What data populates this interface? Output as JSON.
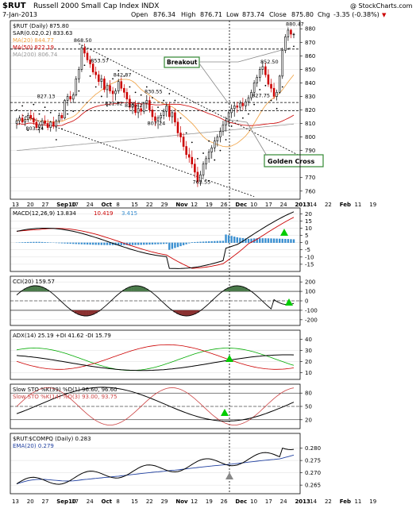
{
  "header": {
    "symbol": "$RUT",
    "name": "Russell 2000 Small Cap Index  INDX",
    "date": "7-Jan-2013",
    "open_label": "Open",
    "open": "876.34",
    "high_label": "High",
    "high": "876.71",
    "low_label": "Low",
    "low": "873.74",
    "close_label": "Close",
    "close": "875.80",
    "chg_label": "Chg",
    "chg": "-3.35 (-0.38%)",
    "chg_arrow": "▼",
    "watermark": "@ StockCharts.com"
  },
  "colors": {
    "up": "#000000",
    "down": "#cc0000",
    "ma20": "#f0a040",
    "ma50": "#cc0000",
    "ma200": "#999999",
    "macd_hist": "#3a8fd0",
    "cci_fill_pos": "#4a7a4a",
    "cci_fill_neg": "#8a3030",
    "green_arrow": "#00cc00",
    "annotation_box": "#338833",
    "ema20": "#2040a0"
  },
  "x_axis": {
    "labels": [
      "13",
      "20",
      "27",
      "Sep10",
      "17",
      "24",
      "Oct",
      "8",
      "15",
      "22",
      "29",
      "Nov",
      "12",
      "19",
      "26",
      "Dec",
      "10",
      "17",
      "24",
      "2013",
      "14",
      "22",
      "Feb",
      "11",
      "19"
    ]
  },
  "chart_data": [
    {
      "type": "candlestick",
      "panel": "price",
      "legend": [
        {
          "label": "$RUT (Daily) 875.80",
          "color": "#000000"
        },
        {
          "label": "SAR(0.02,0.2) 833.63",
          "color": "#000000"
        },
        {
          "label": "MA(20) 844.77",
          "color": "#f0a040"
        },
        {
          "label": "MA(50) 822.19",
          "color": "#cc0000"
        },
        {
          "label": "MA(200) 806.74",
          "color": "#999999"
        }
      ],
      "y_ticks": [
        880,
        870,
        860,
        850,
        840,
        830,
        820,
        810,
        800,
        790,
        780,
        770,
        760
      ],
      "ylim": [
        754,
        886
      ],
      "x_dates": [
        "Aug13",
        "Aug14",
        "Aug15",
        "Aug16",
        "Aug17",
        "Aug20",
        "Aug21",
        "Aug22",
        "Aug23",
        "Aug24",
        "Aug27",
        "Aug28",
        "Aug29",
        "Aug30",
        "Aug31",
        "Sep4",
        "Sep5",
        "Sep6",
        "Sep7",
        "Sep10",
        "Sep11",
        "Sep12",
        "Sep13",
        "Sep14",
        "Sep17",
        "Sep18",
        "Sep19",
        "Sep20",
        "Sep21",
        "Sep24",
        "Sep25",
        "Sep26",
        "Sep27",
        "Sep28",
        "Oct1",
        "Oct2",
        "Oct3",
        "Oct4",
        "Oct5",
        "Oct8",
        "Oct9",
        "Oct10",
        "Oct11",
        "Oct12",
        "Oct15",
        "Oct16",
        "Oct17",
        "Oct18",
        "Oct19",
        "Oct22",
        "Oct23",
        "Oct24",
        "Oct25",
        "Oct26",
        "Oct31",
        "Nov1",
        "Nov2",
        "Nov5",
        "Nov6",
        "Nov7",
        "Nov8",
        "Nov9",
        "Nov12",
        "Nov13",
        "Nov14",
        "Nov15",
        "Nov16",
        "Nov19",
        "Nov20",
        "Nov21",
        "Nov23",
        "Nov26",
        "Nov27",
        "Nov28",
        "Nov29",
        "Nov30",
        "Dec3",
        "Dec4",
        "Dec5",
        "Dec6",
        "Dec7",
        "Dec10",
        "Dec11",
        "Dec12",
        "Dec13",
        "Dec14",
        "Dec17",
        "Dec18",
        "Dec19",
        "Dec20",
        "Dec21",
        "Dec24",
        "Dec26",
        "Dec27",
        "Dec28",
        "Dec31",
        "Jan2",
        "Jan3",
        "Jan4",
        "Jan7"
      ],
      "ohlc": [
        [
          810,
          814,
          806,
          812
        ],
        [
          812,
          816,
          809,
          814
        ],
        [
          814,
          817,
          810,
          811
        ],
        [
          811,
          815,
          808,
          813
        ],
        [
          813,
          818,
          811,
          816
        ],
        [
          816,
          820,
          812,
          814
        ],
        [
          814,
          818,
          809,
          811
        ],
        [
          811,
          814,
          805,
          807
        ],
        [
          807,
          811,
          803,
          809
        ],
        [
          809,
          814,
          806,
          812
        ],
        [
          812,
          816,
          809,
          810
        ],
        [
          810,
          813,
          805,
          807
        ],
        [
          807,
          812,
          804,
          811
        ],
        [
          811,
          815,
          806,
          808
        ],
        [
          808,
          813,
          804,
          812
        ],
        [
          812,
          818,
          810,
          816
        ],
        [
          816,
          818,
          812,
          814
        ],
        [
          814,
          828,
          813,
          827
        ],
        [
          827,
          832,
          823,
          830
        ],
        [
          830,
          834,
          826,
          828
        ],
        [
          828,
          833,
          825,
          831
        ],
        [
          831,
          845,
          830,
          843
        ],
        [
          843,
          852,
          840,
          850
        ],
        [
          850,
          868,
          848,
          866
        ],
        [
          866,
          869,
          859,
          862
        ],
        [
          862,
          864,
          855,
          857
        ],
        [
          857,
          860,
          851,
          854
        ],
        [
          854,
          856,
          846,
          848
        ],
        [
          848,
          852,
          843,
          846
        ],
        [
          846,
          849,
          838,
          841
        ],
        [
          841,
          846,
          836,
          843
        ],
        [
          843,
          845,
          833,
          835
        ],
        [
          835,
          840,
          829,
          838
        ],
        [
          838,
          842,
          832,
          834
        ],
        [
          834,
          837,
          826,
          832
        ],
        [
          832,
          836,
          827,
          834
        ],
        [
          834,
          843,
          832,
          841
        ],
        [
          841,
          844,
          834,
          836
        ],
        [
          836,
          839,
          829,
          833
        ],
        [
          833,
          836,
          826,
          828
        ],
        [
          828,
          831,
          820,
          822
        ],
        [
          822,
          826,
          817,
          824
        ],
        [
          824,
          827,
          816,
          818
        ],
        [
          818,
          823,
          814,
          821
        ],
        [
          821,
          825,
          816,
          819
        ],
        [
          819,
          826,
          817,
          825
        ],
        [
          825,
          831,
          821,
          827
        ],
        [
          827,
          830,
          818,
          820
        ],
        [
          820,
          823,
          812,
          815
        ],
        [
          815,
          818,
          808,
          812
        ],
        [
          812,
          816,
          806,
          814
        ],
        [
          814,
          818,
          810,
          816
        ],
        [
          816,
          821,
          813,
          819
        ],
        [
          819,
          825,
          815,
          823
        ],
        [
          823,
          826,
          812,
          815
        ],
        [
          815,
          820,
          810,
          818
        ],
        [
          818,
          821,
          808,
          811
        ],
        [
          811,
          814,
          800,
          803
        ],
        [
          803,
          808,
          796,
          800
        ],
        [
          800,
          803,
          790,
          793
        ],
        [
          793,
          797,
          784,
          787
        ],
        [
          787,
          792,
          781,
          785
        ],
        [
          785,
          790,
          777,
          780
        ],
        [
          780,
          784,
          770,
          774
        ],
        [
          774,
          778,
          763,
          767
        ],
        [
          767,
          775,
          764,
          772
        ],
        [
          772,
          782,
          770,
          780
        ],
        [
          780,
          786,
          776,
          784
        ],
        [
          784,
          791,
          781,
          789
        ],
        [
          789,
          794,
          784,
          792
        ],
        [
          792,
          800,
          789,
          797
        ],
        [
          797,
          802,
          793,
          800
        ],
        [
          800,
          807,
          796,
          804
        ],
        [
          804,
          812,
          801,
          809
        ],
        [
          809,
          815,
          804,
          812
        ],
        [
          812,
          820,
          808,
          818
        ],
        [
          818,
          824,
          814,
          821
        ],
        [
          821,
          826,
          815,
          823
        ],
        [
          823,
          826,
          818,
          822
        ],
        [
          822,
          827,
          819,
          825
        ],
        [
          825,
          829,
          820,
          823
        ],
        [
          823,
          828,
          820,
          826
        ],
        [
          826,
          831,
          823,
          829
        ],
        [
          829,
          835,
          827,
          833
        ],
        [
          833,
          842,
          830,
          840
        ],
        [
          840,
          846,
          837,
          844
        ],
        [
          844,
          852,
          841,
          850
        ],
        [
          850,
          856,
          846,
          852
        ],
        [
          852,
          855,
          844,
          846
        ],
        [
          846,
          850,
          837,
          839
        ],
        [
          839,
          843,
          833,
          836
        ],
        [
          836,
          840,
          828,
          830
        ],
        [
          830,
          835,
          827,
          833
        ],
        [
          833,
          846,
          832,
          845
        ],
        [
          845,
          866,
          843,
          864
        ],
        [
          864,
          876,
          862,
          874
        ],
        [
          874,
          881,
          871,
          879
        ],
        [
          879,
          880,
          873,
          876
        ],
        [
          876,
          877,
          873,
          876
        ]
      ],
      "annotations": [
        {
          "text": "868.50",
          "x": "Sep14",
          "y": 868.5
        },
        {
          "text": "853.57",
          "x": "Sep24",
          "y": 853.57
        },
        {
          "text": "842.87",
          "x": "Oct4",
          "y": 842.87
        },
        {
          "text": "830.55",
          "x": "Oct19",
          "y": 830.55
        },
        {
          "text": "827.13",
          "x": "Aug27",
          "y": 827.13
        },
        {
          "text": "821.82",
          "x": "Oct1",
          "y": 821.82
        },
        {
          "text": "820.42",
          "x": "Oct10",
          "y": 820.42
        },
        {
          "text": "807.24",
          "x": "Oct22",
          "y": 807.24
        },
        {
          "text": "803.24",
          "x": "Aug21",
          "y": 803.24
        },
        {
          "text": "763.55",
          "x": "Nov15",
          "y": 763.55
        },
        {
          "text": "852.50",
          "x": "Dec20",
          "y": 852.5
        },
        {
          "text": "827.75",
          "x": "Dec17",
          "y": 827.75
        },
        {
          "text": "880.47",
          "x": "Jan4",
          "y": 880.47
        },
        {
          "text": "Breakout",
          "box": true
        },
        {
          "text": "Golden Cross",
          "box": true
        }
      ],
      "hlines": [
        865,
        825.5,
        819.5
      ]
    },
    {
      "type": "line",
      "panel": "macd",
      "legend": [
        {
          "label": "MACD(12,26,9) 13.834",
          "color": "#000000"
        },
        {
          "label": "10.419",
          "color": "#cc0000"
        },
        {
          "label": "3.415",
          "color": "#3a8fd0"
        }
      ],
      "y_ticks": [
        20,
        15,
        10,
        5,
        0,
        -5,
        -10,
        -15
      ],
      "ylim": [
        -20,
        24
      ]
    },
    {
      "type": "area",
      "panel": "cci",
      "legend": [
        {
          "label": "CCI(20) 159.57",
          "color": "#000000"
        }
      ],
      "y_ticks": [
        200,
        100,
        0,
        -100,
        -200
      ],
      "ylim": [
        -260,
        260
      ]
    },
    {
      "type": "line",
      "panel": "adx",
      "legend": [
        {
          "label": "ADX(14) 25.19",
          "color": "#000000"
        },
        {
          "label": "+DI 41.62",
          "color": "#00aa00"
        },
        {
          "label": "-DI 15.79",
          "color": "#cc0000"
        }
      ],
      "y_ticks": [
        40,
        30,
        20,
        10
      ],
      "ylim": [
        4,
        48
      ]
    },
    {
      "type": "line",
      "panel": "sto",
      "legend": [
        {
          "label": "Slow STO %K(39) %D(1) 96.60, 96.60",
          "color": "#000000"
        },
        {
          "label": "Slow STO %K(14) %D(3) 93.00, 93.75",
          "color": "#cc4444"
        }
      ],
      "y_ticks": [
        80,
        50,
        20
      ],
      "ylim": [
        0,
        100
      ]
    },
    {
      "type": "line",
      "panel": "ratio",
      "legend": [
        {
          "label": "$RUT:$COMPQ (Daily) 0.283",
          "color": "#000000"
        },
        {
          "label": "EMA(20) 0.279",
          "color": "#2040a0"
        }
      ],
      "y_ticks": [
        "0.280",
        "0.275",
        "0.270",
        "0.265"
      ],
      "ylim": [
        0.2615,
        0.286
      ]
    }
  ]
}
